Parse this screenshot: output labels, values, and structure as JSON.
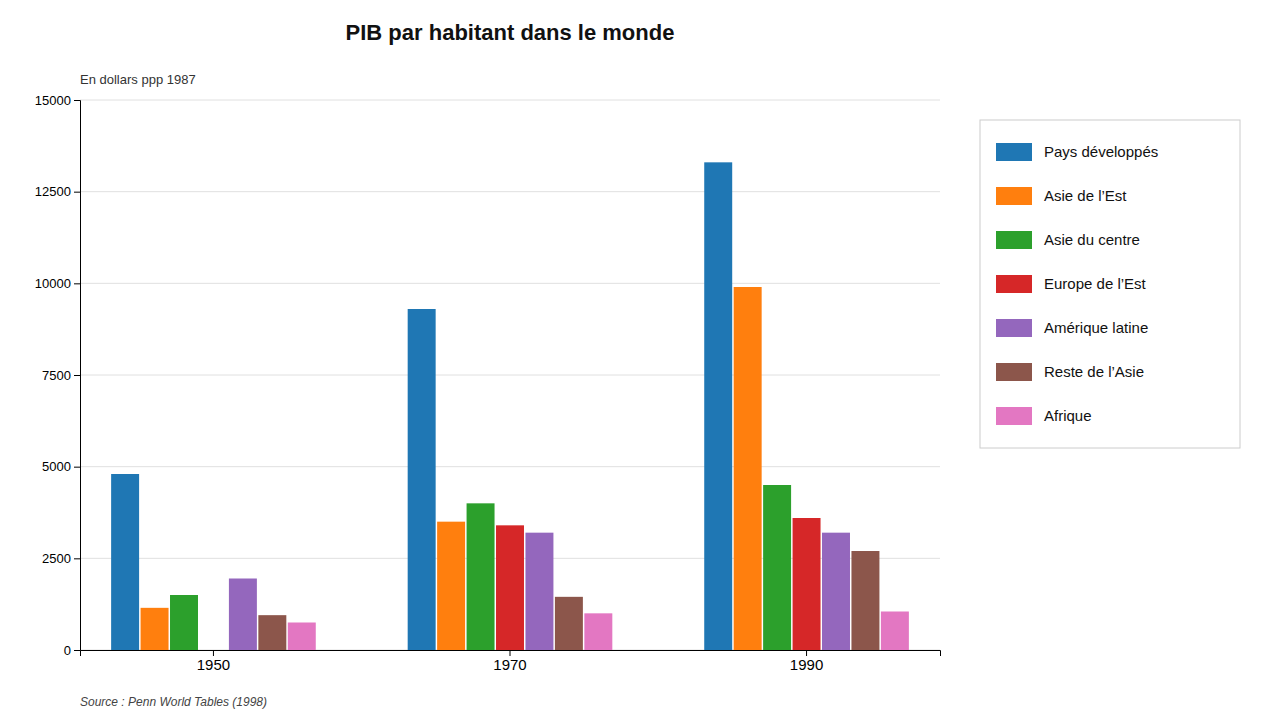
{
  "chart_data": {
    "type": "bar",
    "title": "PIB par habitant dans le monde",
    "subtitle": "En dollars ppp 1987",
    "annotations": [
      "Source : Penn World Tables (1998)"
    ],
    "categories": [
      "1950",
      "1970",
      "1990"
    ],
    "series": [
      {
        "name": "Pays développés",
        "values": [
          4800,
          9300,
          13300
        ]
      },
      {
        "name": "Asie de l’Est",
        "values": [
          1150,
          3500,
          9900
        ]
      },
      {
        "name": "Asie du centre",
        "values": [
          1500,
          4000,
          4500
        ]
      },
      {
        "name": "Europe de l’Est",
        "values": [
          0,
          3400,
          3600
        ]
      },
      {
        "name": "Amérique latine",
        "values": [
          1950,
          3200,
          3200
        ]
      },
      {
        "name": "Reste de l’Asie",
        "values": [
          950,
          1450,
          2700
        ]
      },
      {
        "name": "Afrique",
        "values": [
          750,
          1000,
          1050
        ]
      }
    ],
    "ylim": [
      0,
      15000
    ],
    "yticks": [
      0,
      2500,
      5000,
      7500,
      10000,
      12500,
      15000
    ],
    "grid": true,
    "legend": "right"
  }
}
